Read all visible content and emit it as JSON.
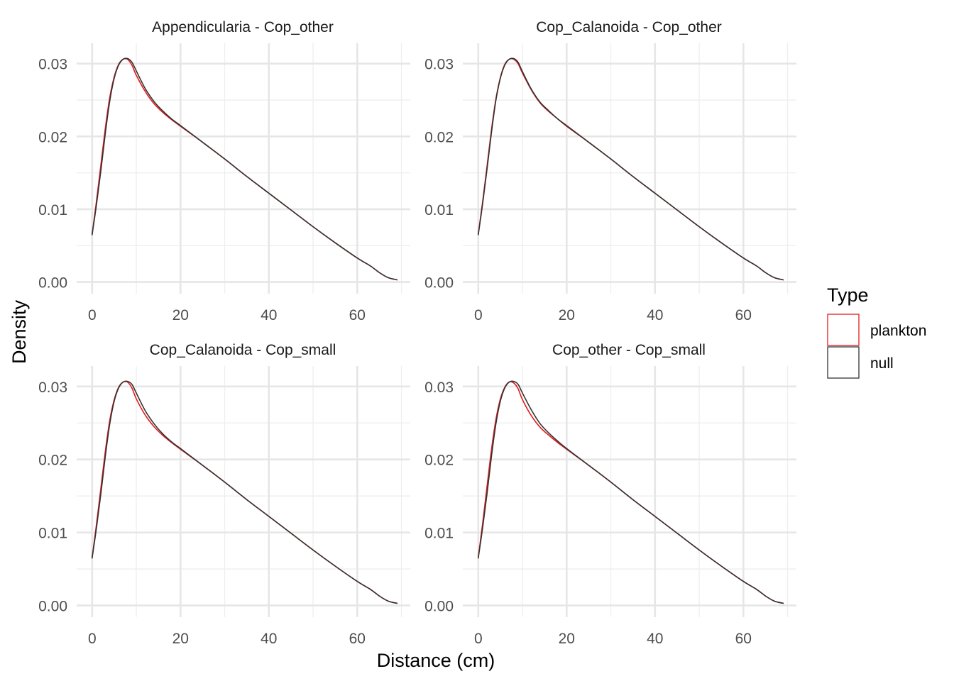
{
  "chart_data": {
    "type": "line",
    "xlabel": "Distance (cm)",
    "ylabel": "Density",
    "xlim": [
      -3.5,
      72
    ],
    "ylim": [
      -0.0016,
      0.0328
    ],
    "x_ticks": [
      0,
      20,
      40,
      60
    ],
    "x_tick_labels": [
      "0",
      "20",
      "40",
      "60"
    ],
    "y_ticks": [
      0,
      0.01,
      0.02,
      0.03
    ],
    "y_tick_labels": [
      "0.00",
      "0.01",
      "0.02",
      "0.03"
    ],
    "grid": true,
    "legend": {
      "title": "Type",
      "placement": "right",
      "entries": [
        {
          "label": "plankton",
          "color": "#e31a1c"
        },
        {
          "label": "null",
          "color": "#333333"
        }
      ]
    },
    "panels": [
      {
        "title": "Appendicularia - Cop_other",
        "series": [
          {
            "name": "plankton",
            "color": "#e31a1c",
            "points": [
              [
                0,
                0.0066
              ],
              [
                1,
                0.0112
              ],
              [
                2,
                0.0162
              ],
              [
                3,
                0.0212
              ],
              [
                4,
                0.0254
              ],
              [
                5,
                0.0282
              ],
              [
                6,
                0.0299
              ],
              [
                7,
                0.0306
              ],
              [
                8,
                0.0306
              ],
              [
                9,
                0.0298
              ],
              [
                10,
                0.0284
              ],
              [
                12,
                0.0262
              ],
              [
                14,
                0.0245
              ],
              [
                16,
                0.0233
              ],
              [
                18,
                0.0223
              ],
              [
                20,
                0.0214
              ],
              [
                25,
                0.0192
              ],
              [
                30,
                0.0169
              ],
              [
                35,
                0.0145
              ],
              [
                40,
                0.0122
              ],
              [
                45,
                0.0099
              ],
              [
                50,
                0.0076
              ],
              [
                55,
                0.0054
              ],
              [
                60,
                0.0033
              ],
              [
                63,
                0.0022
              ],
              [
                65,
                0.0013
              ],
              [
                67,
                0.0006
              ],
              [
                69,
                0.0003
              ]
            ]
          },
          {
            "name": "null",
            "color": "#333333",
            "points": [
              [
                0,
                0.0065
              ],
              [
                1,
                0.0107
              ],
              [
                2,
                0.0154
              ],
              [
                3,
                0.0205
              ],
              [
                4,
                0.0249
              ],
              [
                5,
                0.028
              ],
              [
                6,
                0.0298
              ],
              [
                7,
                0.0306
              ],
              [
                8,
                0.0307
              ],
              [
                9,
                0.0302
              ],
              [
                10,
                0.029
              ],
              [
                12,
                0.0266
              ],
              [
                14,
                0.0248
              ],
              [
                16,
                0.0235
              ],
              [
                18,
                0.0224
              ],
              [
                20,
                0.0215
              ],
              [
                25,
                0.0192
              ],
              [
                30,
                0.0169
              ],
              [
                35,
                0.0145
              ],
              [
                40,
                0.0122
              ],
              [
                45,
                0.0099
              ],
              [
                50,
                0.0076
              ],
              [
                55,
                0.0054
              ],
              [
                60,
                0.0033
              ],
              [
                63,
                0.0022
              ],
              [
                65,
                0.0013
              ],
              [
                67,
                0.0006
              ],
              [
                69,
                0.0003
              ]
            ]
          }
        ]
      },
      {
        "title": "Cop_Calanoida - Cop_other",
        "series": [
          {
            "name": "plankton",
            "color": "#e31a1c",
            "points": [
              [
                0,
                0.0066
              ],
              [
                1,
                0.0111
              ],
              [
                2,
                0.016
              ],
              [
                3,
                0.021
              ],
              [
                4,
                0.0252
              ],
              [
                5,
                0.0281
              ],
              [
                6,
                0.0299
              ],
              [
                7,
                0.0306
              ],
              [
                8,
                0.0306
              ],
              [
                9,
                0.03
              ],
              [
                10,
                0.0287
              ],
              [
                12,
                0.0264
              ],
              [
                14,
                0.0246
              ],
              [
                16,
                0.0234
              ],
              [
                18,
                0.0224
              ],
              [
                20,
                0.0214
              ],
              [
                25,
                0.0192
              ],
              [
                30,
                0.0169
              ],
              [
                35,
                0.0145
              ],
              [
                40,
                0.0122
              ],
              [
                45,
                0.0099
              ],
              [
                50,
                0.0076
              ],
              [
                55,
                0.0054
              ],
              [
                60,
                0.0033
              ],
              [
                63,
                0.0022
              ],
              [
                65,
                0.0013
              ],
              [
                67,
                0.0006
              ],
              [
                69,
                0.0003
              ]
            ]
          },
          {
            "name": "null",
            "color": "#333333",
            "points": [
              [
                0,
                0.0065
              ],
              [
                1,
                0.0108
              ],
              [
                2,
                0.0156
              ],
              [
                3,
                0.0206
              ],
              [
                4,
                0.025
              ],
              [
                5,
                0.028
              ],
              [
                6,
                0.0298
              ],
              [
                7,
                0.0306
              ],
              [
                8,
                0.0307
              ],
              [
                9,
                0.0302
              ],
              [
                10,
                0.0289
              ],
              [
                12,
                0.0265
              ],
              [
                14,
                0.0247
              ],
              [
                16,
                0.0235
              ],
              [
                18,
                0.0224
              ],
              [
                20,
                0.0215
              ],
              [
                25,
                0.0192
              ],
              [
                30,
                0.0169
              ],
              [
                35,
                0.0145
              ],
              [
                40,
                0.0122
              ],
              [
                45,
                0.0099
              ],
              [
                50,
                0.0076
              ],
              [
                55,
                0.0054
              ],
              [
                60,
                0.0033
              ],
              [
                63,
                0.0022
              ],
              [
                65,
                0.0013
              ],
              [
                67,
                0.0006
              ],
              [
                69,
                0.0003
              ]
            ]
          }
        ]
      },
      {
        "title": "Cop_Calanoida - Cop_small",
        "series": [
          {
            "name": "plankton",
            "color": "#e31a1c",
            "points": [
              [
                0,
                0.0066
              ],
              [
                1,
                0.0112
              ],
              [
                2,
                0.0162
              ],
              [
                3,
                0.0212
              ],
              [
                4,
                0.0254
              ],
              [
                5,
                0.0282
              ],
              [
                6,
                0.0299
              ],
              [
                7,
                0.0306
              ],
              [
                8,
                0.0306
              ],
              [
                9,
                0.0298
              ],
              [
                10,
                0.0283
              ],
              [
                12,
                0.0261
              ],
              [
                14,
                0.0245
              ],
              [
                16,
                0.0233
              ],
              [
                18,
                0.0223
              ],
              [
                20,
                0.0214
              ],
              [
                25,
                0.0192
              ],
              [
                30,
                0.0169
              ],
              [
                35,
                0.0145
              ],
              [
                40,
                0.0122
              ],
              [
                45,
                0.0099
              ],
              [
                50,
                0.0076
              ],
              [
                55,
                0.0054
              ],
              [
                60,
                0.0033
              ],
              [
                63,
                0.0022
              ],
              [
                65,
                0.0013
              ],
              [
                67,
                0.0006
              ],
              [
                69,
                0.0003
              ]
            ]
          },
          {
            "name": "null",
            "color": "#333333",
            "points": [
              [
                0,
                0.0065
              ],
              [
                1,
                0.0107
              ],
              [
                2,
                0.0154
              ],
              [
                3,
                0.0205
              ],
              [
                4,
                0.0249
              ],
              [
                5,
                0.028
              ],
              [
                6,
                0.0298
              ],
              [
                7,
                0.0306
              ],
              [
                8,
                0.0307
              ],
              [
                9,
                0.0303
              ],
              [
                10,
                0.0291
              ],
              [
                12,
                0.0267
              ],
              [
                14,
                0.0249
              ],
              [
                16,
                0.0235
              ],
              [
                18,
                0.0224
              ],
              [
                20,
                0.0215
              ],
              [
                25,
                0.0192
              ],
              [
                30,
                0.0169
              ],
              [
                35,
                0.0145
              ],
              [
                40,
                0.0122
              ],
              [
                45,
                0.0099
              ],
              [
                50,
                0.0076
              ],
              [
                55,
                0.0054
              ],
              [
                60,
                0.0033
              ],
              [
                63,
                0.0022
              ],
              [
                65,
                0.0013
              ],
              [
                67,
                0.0006
              ],
              [
                69,
                0.0003
              ]
            ]
          }
        ]
      },
      {
        "title": "Cop_other - Cop_small",
        "series": [
          {
            "name": "plankton",
            "color": "#e31a1c",
            "points": [
              [
                0,
                0.0066
              ],
              [
                1,
                0.0113
              ],
              [
                2,
                0.0164
              ],
              [
                3,
                0.0214
              ],
              [
                4,
                0.0255
              ],
              [
                5,
                0.0283
              ],
              [
                6,
                0.0299
              ],
              [
                7,
                0.0306
              ],
              [
                8,
                0.0305
              ],
              [
                9,
                0.0297
              ],
              [
                10,
                0.0282
              ],
              [
                12,
                0.026
              ],
              [
                14,
                0.0244
              ],
              [
                16,
                0.0233
              ],
              [
                18,
                0.0223
              ],
              [
                20,
                0.0214
              ],
              [
                25,
                0.0192
              ],
              [
                30,
                0.0169
              ],
              [
                35,
                0.0145
              ],
              [
                40,
                0.0122
              ],
              [
                45,
                0.0099
              ],
              [
                50,
                0.0076
              ],
              [
                55,
                0.0054
              ],
              [
                60,
                0.0033
              ],
              [
                63,
                0.0022
              ],
              [
                65,
                0.0013
              ],
              [
                67,
                0.0006
              ],
              [
                69,
                0.0003
              ]
            ]
          },
          {
            "name": "null",
            "color": "#333333",
            "points": [
              [
                0,
                0.0065
              ],
              [
                1,
                0.0107
              ],
              [
                2,
                0.0154
              ],
              [
                3,
                0.0205
              ],
              [
                4,
                0.0249
              ],
              [
                5,
                0.028
              ],
              [
                6,
                0.0298
              ],
              [
                7,
                0.0306
              ],
              [
                8,
                0.0307
              ],
              [
                9,
                0.0303
              ],
              [
                10,
                0.0291
              ],
              [
                12,
                0.0268
              ],
              [
                14,
                0.0249
              ],
              [
                16,
                0.0236
              ],
              [
                18,
                0.0225
              ],
              [
                20,
                0.0215
              ],
              [
                25,
                0.0192
              ],
              [
                30,
                0.0169
              ],
              [
                35,
                0.0145
              ],
              [
                40,
                0.0122
              ],
              [
                45,
                0.0099
              ],
              [
                50,
                0.0076
              ],
              [
                55,
                0.0054
              ],
              [
                60,
                0.0033
              ],
              [
                63,
                0.0022
              ],
              [
                65,
                0.0013
              ],
              [
                67,
                0.0006
              ],
              [
                69,
                0.0003
              ]
            ]
          }
        ]
      }
    ]
  }
}
